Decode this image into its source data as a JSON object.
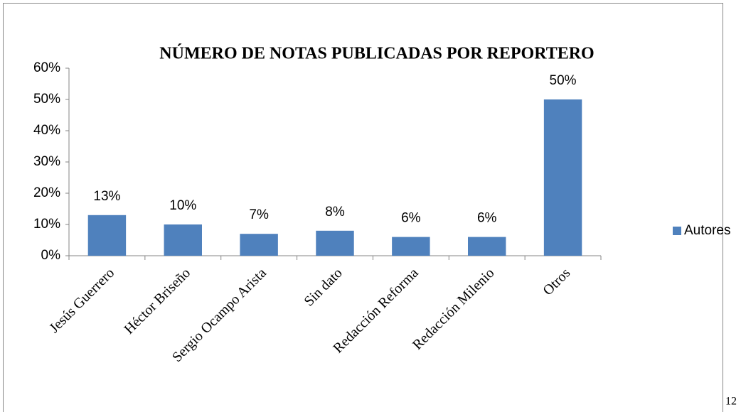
{
  "chart_data": {
    "type": "bar",
    "title": "NÚMERO DE NOTAS PUBLICADAS POR REPORTERO",
    "categories": [
      "Jesús Guerrero",
      "Héctor Briseño",
      "Sergio Ocampo Arista",
      "Sin dato",
      "Redacción Reforma",
      "Redacción Milenio",
      "Otros"
    ],
    "series": [
      {
        "name": "Autores",
        "color": "#4f81bd",
        "values": [
          13,
          10,
          7,
          8,
          6,
          6,
          50
        ],
        "value_labels": [
          "13%",
          "10%",
          "7%",
          "8%",
          "6%",
          "6%",
          "50%"
        ]
      }
    ],
    "ylim": [
      0,
      60
    ],
    "yticks": [
      {
        "value": 0,
        "label": "0%"
      },
      {
        "value": 10,
        "label": "10%"
      },
      {
        "value": 20,
        "label": "20%"
      },
      {
        "value": 30,
        "label": "30%"
      },
      {
        "value": 40,
        "label": "40%"
      },
      {
        "value": 50,
        "label": "50%"
      },
      {
        "value": 60,
        "label": "60%"
      }
    ],
    "grid": false,
    "legend": "right"
  },
  "page_number": "12"
}
